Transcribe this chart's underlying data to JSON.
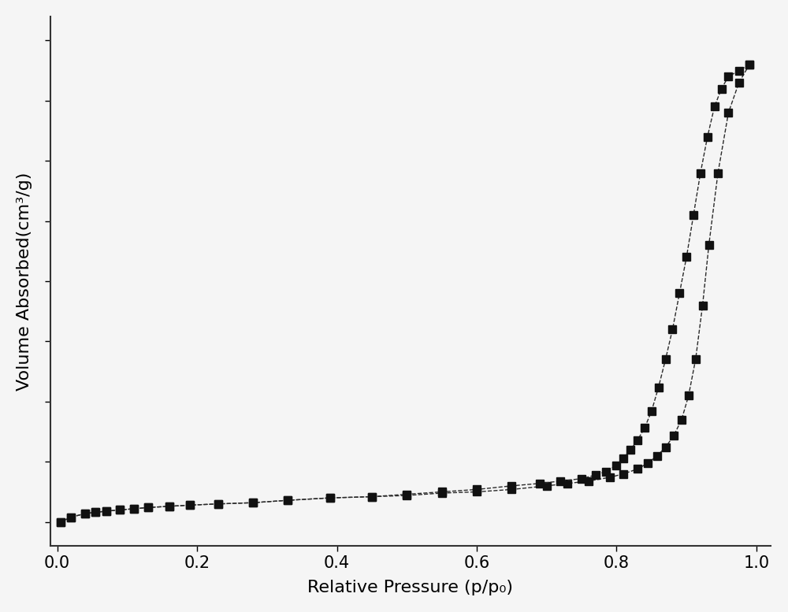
{
  "xlabel": "Relative Pressure (p/p₀)",
  "ylabel": "Volume Absorbed(cm³/g)",
  "xlim": [
    -0.01,
    1.02
  ],
  "xticks": [
    0.0,
    0.2,
    0.4,
    0.6,
    0.8,
    1.0
  ],
  "background_color": "#f5f5f5",
  "line_color": "#2a2a2a",
  "marker": "s",
  "marker_color": "#111111",
  "marker_size": 7,
  "line_style": "--",
  "line_width": 1.0,
  "adsorption_x": [
    0.005,
    0.02,
    0.04,
    0.055,
    0.07,
    0.09,
    0.11,
    0.13,
    0.16,
    0.19,
    0.23,
    0.28,
    0.33,
    0.39,
    0.45,
    0.5,
    0.55,
    0.6,
    0.65,
    0.7,
    0.73,
    0.76,
    0.79,
    0.81,
    0.83,
    0.845,
    0.858,
    0.87,
    0.882,
    0.893,
    0.903,
    0.913,
    0.923,
    0.932,
    0.945,
    0.96,
    0.975,
    0.99
  ],
  "adsorption_y": [
    50,
    54,
    57,
    58,
    59,
    60,
    61,
    62,
    63,
    64,
    65,
    66,
    68,
    70,
    71,
    72,
    74,
    75,
    77,
    80,
    82,
    84,
    87,
    90,
    94,
    99,
    105,
    112,
    122,
    135,
    155,
    185,
    230,
    280,
    340,
    390,
    415,
    430
  ],
  "desorption_x": [
    0.99,
    0.975,
    0.96,
    0.95,
    0.94,
    0.93,
    0.92,
    0.91,
    0.9,
    0.89,
    0.88,
    0.87,
    0.86,
    0.85,
    0.84,
    0.83,
    0.82,
    0.81,
    0.8,
    0.785,
    0.77,
    0.75,
    0.72,
    0.69,
    0.65,
    0.6,
    0.55,
    0.5,
    0.45,
    0.39,
    0.33,
    0.28,
    0.23,
    0.19,
    0.16,
    0.13,
    0.11,
    0.09,
    0.07,
    0.055,
    0.04,
    0.02,
    0.005
  ],
  "desorption_y": [
    430,
    425,
    420,
    410,
    395,
    370,
    340,
    305,
    270,
    240,
    210,
    185,
    162,
    142,
    128,
    118,
    110,
    103,
    97,
    92,
    89,
    86,
    84,
    82,
    80,
    77,
    75,
    73,
    71,
    70,
    68,
    66,
    65,
    64,
    63,
    62,
    61,
    60,
    59,
    58,
    57,
    54,
    50
  ],
  "xlabel_fontsize": 16,
  "ylabel_fontsize": 16,
  "tick_fontsize": 15,
  "fig_width": 10.0,
  "fig_height": 7.77,
  "ylim": [
    30,
    470
  ]
}
